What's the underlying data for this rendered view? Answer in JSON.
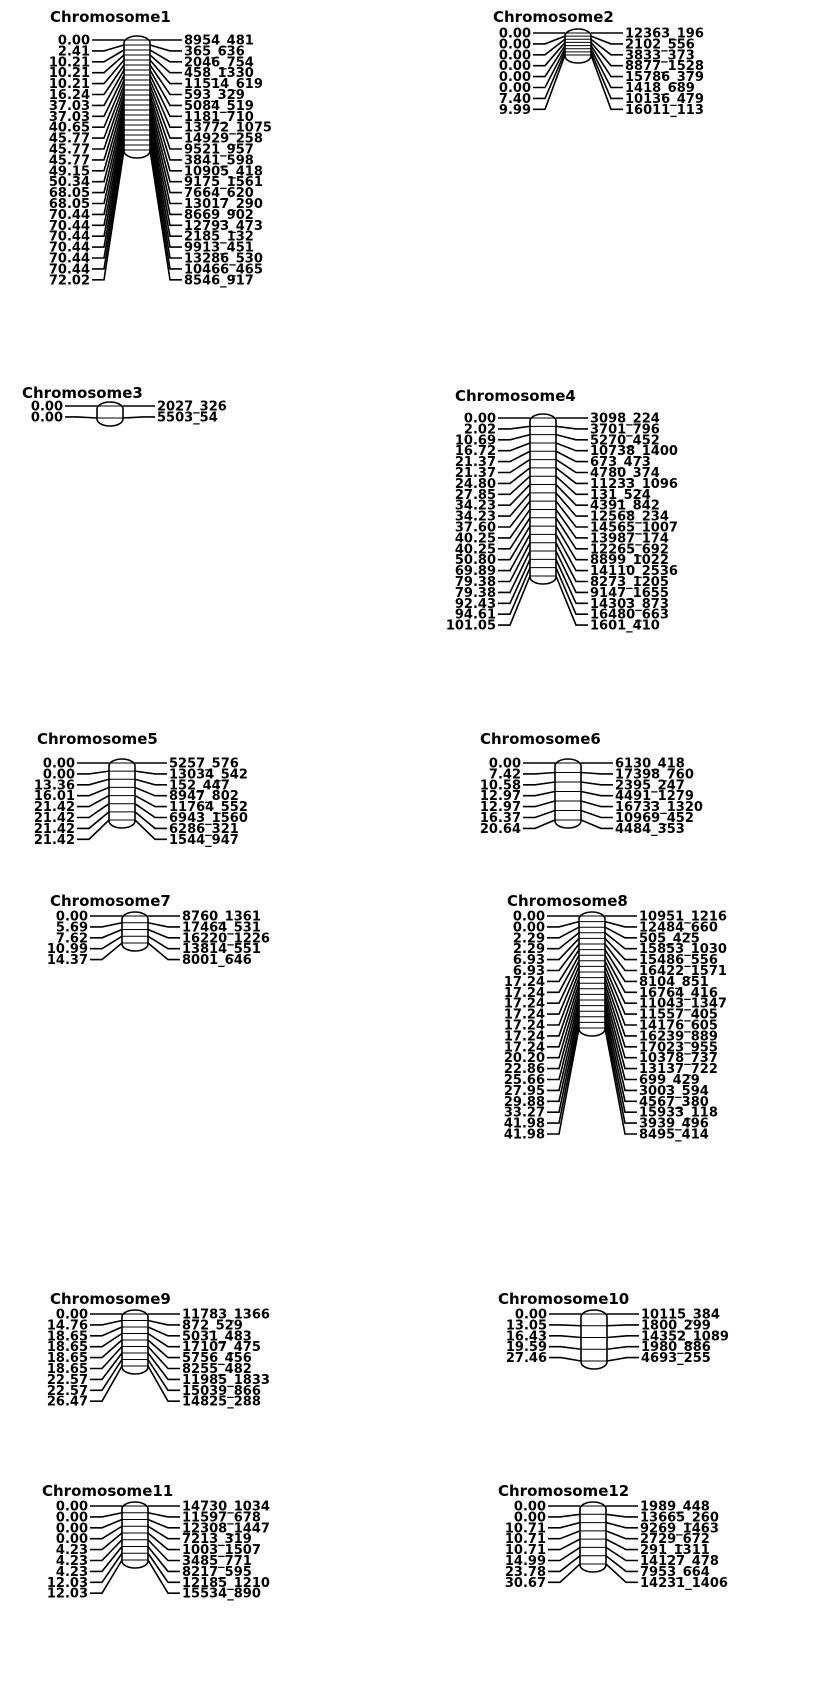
{
  "chromosomes": [
    {
      "name": "Chromosome1",
      "markers": [
        {
          "pos": "0.00",
          "id": "8954_481"
        },
        {
          "pos": "2.41",
          "id": "365_636"
        },
        {
          "pos": "10.21",
          "id": "2046_754"
        },
        {
          "pos": "10.21",
          "id": "458_1330"
        },
        {
          "pos": "10.21",
          "id": "11514_619"
        },
        {
          "pos": "16.24",
          "id": "593_329"
        },
        {
          "pos": "37.03",
          "id": "5084_519"
        },
        {
          "pos": "37.03",
          "id": "1181_710"
        },
        {
          "pos": "40.65",
          "id": "13772_1075"
        },
        {
          "pos": "45.77",
          "id": "14929_258"
        },
        {
          "pos": "45.77",
          "id": "9521_957"
        },
        {
          "pos": "45.77",
          "id": "3841_598"
        },
        {
          "pos": "49.15",
          "id": "10905_418"
        },
        {
          "pos": "50.34",
          "id": "9175_1561"
        },
        {
          "pos": "68.05",
          "id": "7664_620"
        },
        {
          "pos": "68.05",
          "id": "13017_290"
        },
        {
          "pos": "70.44",
          "id": "8669_902"
        },
        {
          "pos": "70.44",
          "id": "12793_473"
        },
        {
          "pos": "70.44",
          "id": "2185_132"
        },
        {
          "pos": "70.44",
          "id": "9913_451"
        },
        {
          "pos": "70.44",
          "id": "13286_530"
        },
        {
          "pos": "70.44",
          "id": "10466_465"
        },
        {
          "pos": "72.02",
          "id": "8546_917"
        }
      ]
    },
    {
      "name": "Chromosome2",
      "markers": [
        {
          "pos": "0.00",
          "id": "12363_196"
        },
        {
          "pos": "0.00",
          "id": "2102_556"
        },
        {
          "pos": "0.00",
          "id": "3833_373"
        },
        {
          "pos": "0.00",
          "id": "8877_1528"
        },
        {
          "pos": "0.00",
          "id": "15786_379"
        },
        {
          "pos": "0.00",
          "id": "1418_689"
        },
        {
          "pos": "7.40",
          "id": "10136_479"
        },
        {
          "pos": "9.99",
          "id": "16011_113"
        }
      ]
    },
    {
      "name": "Chromosome3",
      "markers": [
        {
          "pos": "0.00",
          "id": "2027_326"
        },
        {
          "pos": "0.00",
          "id": "5503_54"
        }
      ]
    },
    {
      "name": "Chromosome4",
      "markers": [
        {
          "pos": "0.00",
          "id": "3098_224"
        },
        {
          "pos": "2.02",
          "id": "3701_796"
        },
        {
          "pos": "10.69",
          "id": "5270_452"
        },
        {
          "pos": "16.72",
          "id": "10738_1400"
        },
        {
          "pos": "21.37",
          "id": "673_473"
        },
        {
          "pos": "21.37",
          "id": "4780_374"
        },
        {
          "pos": "24.80",
          "id": "11233_1096"
        },
        {
          "pos": "27.85",
          "id": "131_524"
        },
        {
          "pos": "34.23",
          "id": "4391_842"
        },
        {
          "pos": "34.23",
          "id": "12568_234"
        },
        {
          "pos": "37.60",
          "id": "14565_1007"
        },
        {
          "pos": "40.25",
          "id": "13987_174"
        },
        {
          "pos": "40.25",
          "id": "12265_692"
        },
        {
          "pos": "50.80",
          "id": "8899_1022"
        },
        {
          "pos": "69.89",
          "id": "14110_2536"
        },
        {
          "pos": "79.38",
          "id": "8273_1205"
        },
        {
          "pos": "79.38",
          "id": "9147_1655"
        },
        {
          "pos": "92.43",
          "id": "14303_873"
        },
        {
          "pos": "94.61",
          "id": "16480_663"
        },
        {
          "pos": "101.05",
          "id": "1601_410"
        }
      ]
    },
    {
      "name": "Chromosome5",
      "markers": [
        {
          "pos": "0.00",
          "id": "5257_576"
        },
        {
          "pos": "0.00",
          "id": "13034_542"
        },
        {
          "pos": "13.36",
          "id": "152_447"
        },
        {
          "pos": "16.01",
          "id": "8947_802"
        },
        {
          "pos": "21.42",
          "id": "11764_552"
        },
        {
          "pos": "21.42",
          "id": "6943_1560"
        },
        {
          "pos": "21.42",
          "id": "6286_321"
        },
        {
          "pos": "21.42",
          "id": "1544_947"
        }
      ]
    },
    {
      "name": "Chromosome6",
      "markers": [
        {
          "pos": "0.00",
          "id": "6130_418"
        },
        {
          "pos": "7.42",
          "id": "17398_760"
        },
        {
          "pos": "10.58",
          "id": "2395_247"
        },
        {
          "pos": "12.97",
          "id": "4491_1279"
        },
        {
          "pos": "12.97",
          "id": "16733_1320"
        },
        {
          "pos": "16.37",
          "id": "10969_452"
        },
        {
          "pos": "20.64",
          "id": "4484_353"
        }
      ]
    },
    {
      "name": "Chromosome7",
      "markers": [
        {
          "pos": "0.00",
          "id": "8760_1361"
        },
        {
          "pos": "5.69",
          "id": "17464_531"
        },
        {
          "pos": "7.62",
          "id": "16220_1226"
        },
        {
          "pos": "10.99",
          "id": "13814_551"
        },
        {
          "pos": "14.37",
          "id": "8001_646"
        }
      ]
    },
    {
      "name": "Chromosome8",
      "markers": [
        {
          "pos": "0.00",
          "id": "10951_1216"
        },
        {
          "pos": "0.00",
          "id": "12484_660"
        },
        {
          "pos": "2.29",
          "id": "505_425"
        },
        {
          "pos": "2.29",
          "id": "15853_1030"
        },
        {
          "pos": "6.93",
          "id": "15486_556"
        },
        {
          "pos": "6.93",
          "id": "16422_1571"
        },
        {
          "pos": "17.24",
          "id": "8104_851"
        },
        {
          "pos": "17.24",
          "id": "16764_416"
        },
        {
          "pos": "17.24",
          "id": "11043_1347"
        },
        {
          "pos": "17.24",
          "id": "11557_405"
        },
        {
          "pos": "17.24",
          "id": "14176_605"
        },
        {
          "pos": "17.24",
          "id": "16239_889"
        },
        {
          "pos": "17.24",
          "id": "17023_955"
        },
        {
          "pos": "20.20",
          "id": "10378_737"
        },
        {
          "pos": "22.86",
          "id": "13137_722"
        },
        {
          "pos": "25.66",
          "id": "699_429"
        },
        {
          "pos": "27.95",
          "id": "3003_594"
        },
        {
          "pos": "29.88",
          "id": "4567_380"
        },
        {
          "pos": "33.27",
          "id": "15933_118"
        },
        {
          "pos": "41.98",
          "id": "3939_496"
        },
        {
          "pos": "41.98",
          "id": "8495_414"
        }
      ]
    },
    {
      "name": "Chromosome9",
      "markers": [
        {
          "pos": "0.00",
          "id": "11783_1366"
        },
        {
          "pos": "14.76",
          "id": "872_529"
        },
        {
          "pos": "18.65",
          "id": "5031_483"
        },
        {
          "pos": "18.65",
          "id": "17107_475"
        },
        {
          "pos": "18.65",
          "id": "5756_456"
        },
        {
          "pos": "18.65",
          "id": "8255_482"
        },
        {
          "pos": "22.57",
          "id": "11985_1833"
        },
        {
          "pos": "22.57",
          "id": "15039_866"
        },
        {
          "pos": "26.47",
          "id": "14825_288"
        }
      ]
    },
    {
      "name": "Chromosome10",
      "markers": [
        {
          "pos": "0.00",
          "id": "10115_384"
        },
        {
          "pos": "13.05",
          "id": "1800_299"
        },
        {
          "pos": "16.43",
          "id": "14352_1089"
        },
        {
          "pos": "19.59",
          "id": "1980_886"
        },
        {
          "pos": "27.46",
          "id": "4693_255"
        }
      ]
    },
    {
      "name": "Chromosome11",
      "markers": [
        {
          "pos": "0.00",
          "id": "14730_1034"
        },
        {
          "pos": "0.00",
          "id": "11597_678"
        },
        {
          "pos": "0.00",
          "id": "12308_1447"
        },
        {
          "pos": "0.00",
          "id": "7213_319"
        },
        {
          "pos": "4.23",
          "id": "1003_1507"
        },
        {
          "pos": "4.23",
          "id": "3485_771"
        },
        {
          "pos": "4.23",
          "id": "8217_595"
        },
        {
          "pos": "12.03",
          "id": "12185_1210"
        },
        {
          "pos": "12.03",
          "id": "15534_890"
        }
      ]
    },
    {
      "name": "Chromosome12",
      "markers": [
        {
          "pos": "0.00",
          "id": "1989_448"
        },
        {
          "pos": "0.00",
          "id": "13665_260"
        },
        {
          "pos": "10.71",
          "id": "9269_1463"
        },
        {
          "pos": "10.71",
          "id": "2729_672"
        },
        {
          "pos": "10.71",
          "id": "291_1311"
        },
        {
          "pos": "14.99",
          "id": "14127_478"
        },
        {
          "pos": "23.78",
          "id": "7953_664"
        },
        {
          "pos": "30.67",
          "id": "14231_1406"
        }
      ]
    }
  ]
}
